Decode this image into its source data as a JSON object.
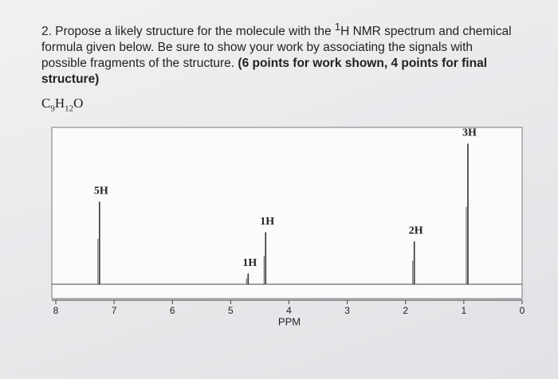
{
  "question": {
    "before": "2. Propose a likely structure for the molecule with the ",
    "sup": "1",
    "after": "H NMR spectrum and chemical formula given below. Be sure to show your work by associating the signals with possible fragments of the structure. ",
    "bold": "(6 points for work shown, 4 points for final structure)"
  },
  "formula": [
    "C",
    "9",
    "H",
    "12",
    "O"
  ],
  "chart_data": {
    "type": "nmr",
    "xlabel": "PPM",
    "xlim": [
      8,
      0
    ],
    "xticks": [
      8,
      7,
      6,
      5,
      4,
      3,
      2,
      1,
      0
    ],
    "ylim": [
      0,
      100
    ],
    "x": [
      7.25,
      4.7,
      4.4,
      1.85,
      0.93
    ],
    "values": [
      54,
      7,
      34,
      28,
      92
    ],
    "annotations": [
      "5H",
      "1H",
      "1H",
      "2H",
      "3H"
    ]
  }
}
